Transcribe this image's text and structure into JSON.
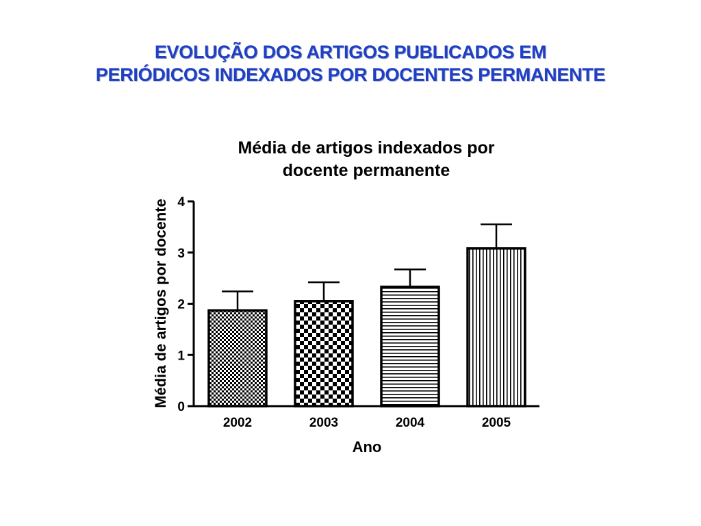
{
  "slide": {
    "title_line1": "EVOLUÇÃO DOS ARTIGOS PUBLICADOS EM",
    "title_line2": "PERIÓDICOS INDEXADOS POR DOCENTES PERMANENTE",
    "title_color": "#1f3fc4"
  },
  "chart_data": {
    "type": "bar",
    "title": [
      "Média de artigos indexados por",
      "docente permanente"
    ],
    "xlabel": "Ano",
    "ylabel": "Média de artigos por docente",
    "categories": [
      "2002",
      "2003",
      "2004",
      "2005"
    ],
    "values": [
      1.87,
      2.05,
      2.33,
      3.08
    ],
    "error_plus": [
      0.37,
      0.37,
      0.34,
      0.47
    ],
    "bar_patterns": [
      "fine-checker",
      "checker",
      "horizontal-lines",
      "vertical-lines"
    ],
    "ylim": [
      0,
      4
    ],
    "yticks": [
      0,
      1,
      2,
      3,
      4
    ],
    "grid": false,
    "legend": "none"
  }
}
